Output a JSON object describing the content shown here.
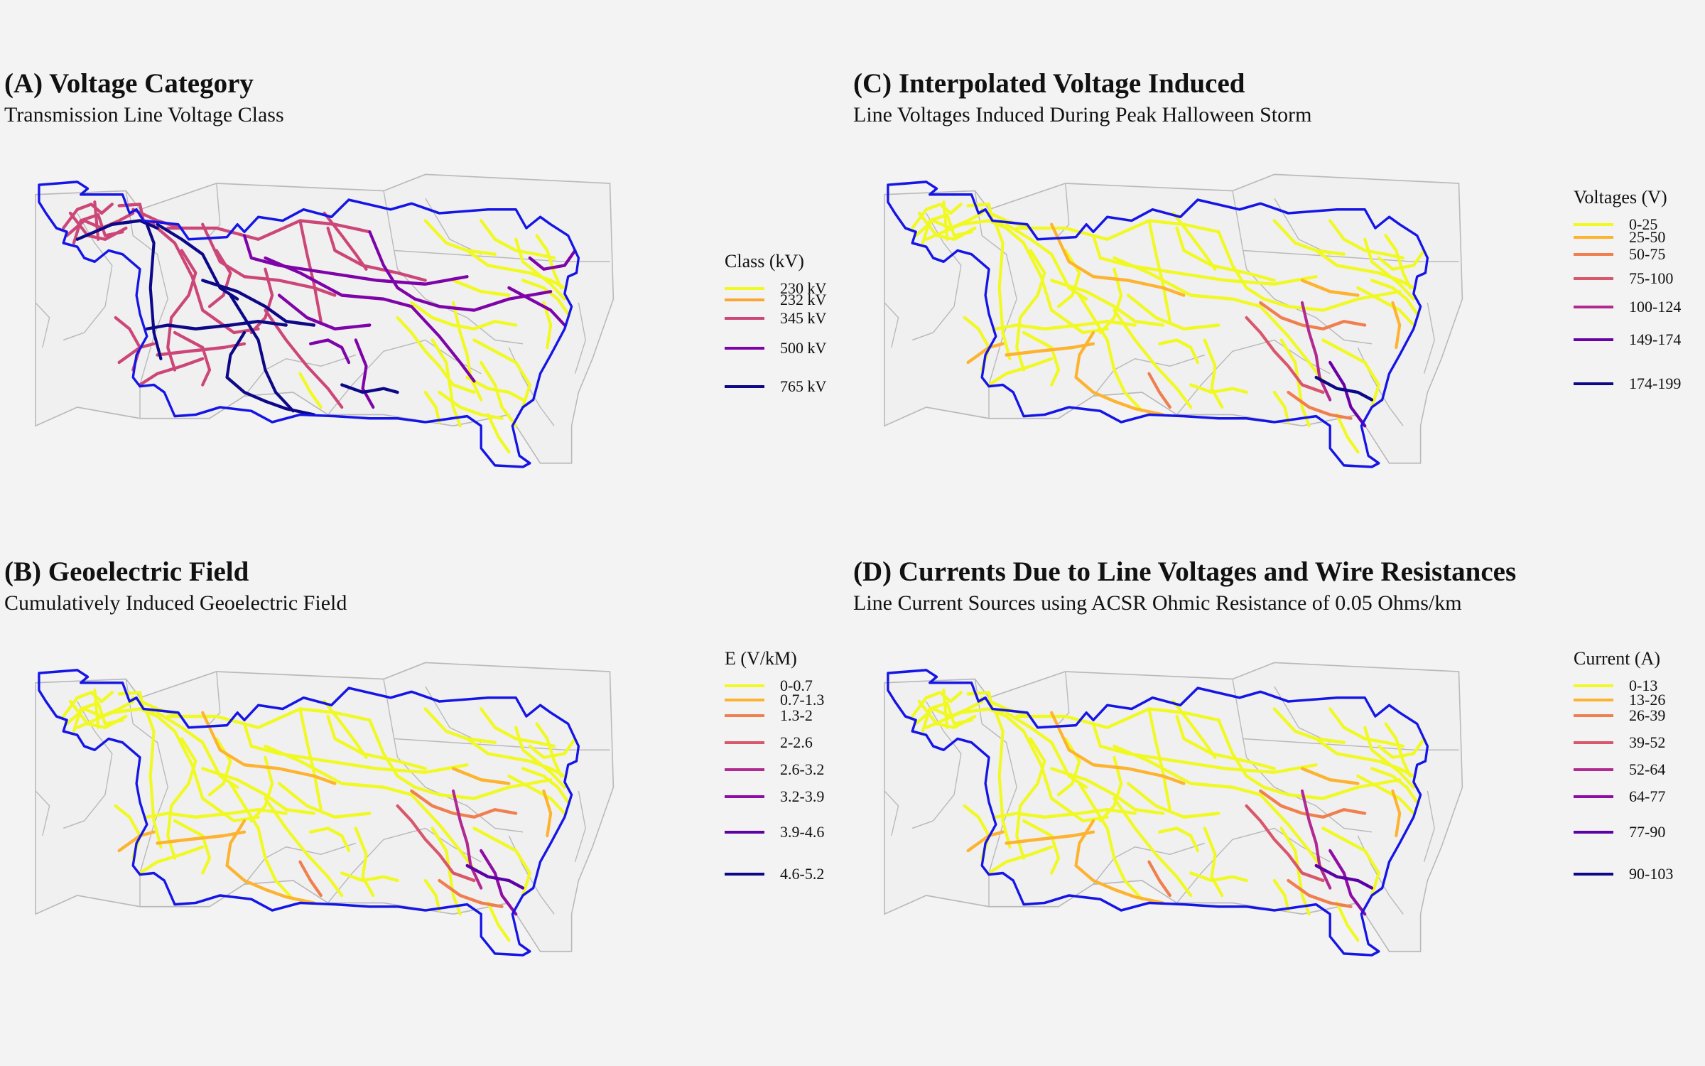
{
  "colors": {
    "background": "#f3f3f3",
    "boundary": "#1515e6",
    "state_lines": "#b9b9b9"
  },
  "panels": [
    {
      "id": "a",
      "title": "(A) Voltage Category",
      "subtitle": "Transmission Line Voltage Class",
      "legend_title": "Class (kV)",
      "scheme": "voltage",
      "legend_items": [
        {
          "label": "230 kV",
          "color": "#f0f921"
        },
        {
          "label": "232 kV",
          "color": "#fca636"
        },
        {
          "label": "345 kV",
          "color": "#cc4778"
        },
        {
          "label": "500 kV",
          "color": "#7e03a8"
        },
        {
          "label": "765 kV",
          "color": "#0d0887"
        }
      ]
    },
    {
      "id": "c",
      "title": "(C) Interpolated Voltage Induced",
      "subtitle": "Line Voltages Induced During Peak Halloween Storm",
      "legend_title": "Voltages (V)",
      "scheme": "induced",
      "legend_items": [
        {
          "label": "0-25",
          "color": "#f0f921"
        },
        {
          "label": "25-50",
          "color": "#fdb32f"
        },
        {
          "label": "50-75",
          "color": "#f07f4f"
        },
        {
          "label": "75-100",
          "color": "#d8576b"
        },
        {
          "label": "100-124",
          "color": "#b12a90"
        },
        {
          "label": "149-174",
          "color": "#6a00a8"
        },
        {
          "label": "174-199",
          "color": "#0d0887"
        }
      ]
    },
    {
      "id": "b",
      "title": "(B) Geoelectric Field",
      "subtitle": "Cumulatively Induced Geoelectric Field",
      "legend_title": "E (V/kM)",
      "scheme": "induced",
      "legend_items": [
        {
          "label": "0-0.7",
          "color": "#f0f921"
        },
        {
          "label": "0.7-1.3",
          "color": "#fdb32f"
        },
        {
          "label": "1.3-2",
          "color": "#f07f4f"
        },
        {
          "label": "2-2.6",
          "color": "#d8576b"
        },
        {
          "label": "2.6-3.2",
          "color": "#b12a90"
        },
        {
          "label": "3.2-3.9",
          "color": "#8f0da4"
        },
        {
          "label": "3.9-4.6",
          "color": "#5c01a6"
        },
        {
          "label": "4.6-5.2",
          "color": "#0d0887"
        }
      ]
    },
    {
      "id": "d",
      "title": "(D) Currents Due to Line Voltages and Wire Resistances",
      "subtitle": "Line Current Sources using ACSR Ohmic Resistance of 0.05 Ohms/km",
      "legend_title": "Current (A)",
      "scheme": "induced",
      "legend_items": [
        {
          "label": "0-13",
          "color": "#f0f921"
        },
        {
          "label": "13-26",
          "color": "#fdb32f"
        },
        {
          "label": "26-39",
          "color": "#f07f4f"
        },
        {
          "label": "39-52",
          "color": "#d8576b"
        },
        {
          "label": "52-64",
          "color": "#b12a90"
        },
        {
          "label": "64-77",
          "color": "#8f0da4"
        },
        {
          "label": "77-90",
          "color": "#5c01a6"
        },
        {
          "label": "90-103",
          "color": "#0d0887"
        }
      ]
    }
  ]
}
